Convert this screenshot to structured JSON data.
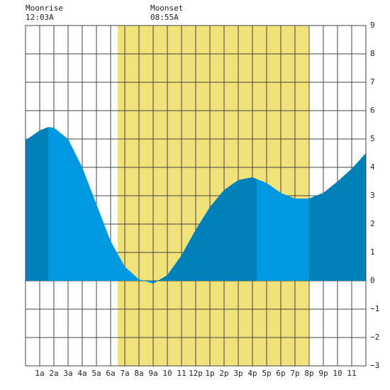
{
  "chart_data": {
    "type": "area",
    "annotations": [
      {
        "label": "Moonrise",
        "time": "12:03A"
      },
      {
        "label": "Moonset",
        "time": "08:55A"
      }
    ],
    "x": [
      0,
      1,
      1.6,
      2,
      3,
      4,
      5,
      6,
      7,
      8,
      9,
      10,
      11,
      12,
      13,
      14,
      15,
      16,
      17,
      18,
      19,
      20,
      21,
      22,
      23,
      24
    ],
    "series": [
      {
        "color": "#0099e0",
        "dark_color": "#0080b8",
        "values": [
          4.95,
          5.3,
          5.42,
          5.4,
          5.0,
          4.0,
          2.7,
          1.4,
          0.5,
          0.05,
          -0.1,
          0.2,
          0.9,
          1.8,
          2.6,
          3.2,
          3.55,
          3.65,
          3.45,
          3.1,
          2.9,
          2.9,
          3.1,
          3.5,
          3.95,
          4.5
        ]
      }
    ],
    "daylight": [
      6.5,
      19.95
    ],
    "daylight_color": "#f2e27a",
    "dark_bands": [
      [
        0,
        1.6
      ],
      [
        8.9,
        16.3
      ],
      [
        20,
        24
      ]
    ],
    "xlim": [
      0,
      24
    ],
    "xticks": [
      {
        "value": 1,
        "label": "1a"
      },
      {
        "value": 2,
        "label": "2a"
      },
      {
        "value": 3,
        "label": "3a"
      },
      {
        "value": 4,
        "label": "4a"
      },
      {
        "value": 5,
        "label": "5a"
      },
      {
        "value": 6,
        "label": "6a"
      },
      {
        "value": 7,
        "label": "7a"
      },
      {
        "value": 8,
        "label": "8a"
      },
      {
        "value": 9,
        "label": "9a"
      },
      10,
      11,
      {
        "value": 12,
        "label": "12p"
      },
      {
        "value": 13,
        "label": "1p"
      },
      {
        "value": 14,
        "label": "2p"
      },
      {
        "value": 15,
        "label": "3p"
      },
      {
        "value": 16,
        "label": "4p"
      },
      {
        "value": 17,
        "label": "5p"
      },
      {
        "value": 18,
        "label": "6p"
      },
      {
        "value": 19,
        "label": "7p"
      },
      {
        "value": 20,
        "label": "8p"
      },
      {
        "value": 21,
        "label": "9p"
      },
      {
        "value": 22,
        "label": "10"
      },
      {
        "value": 23,
        "label": "11"
      }
    ],
    "ylim": [
      -3,
      9
    ],
    "yticks": [
      {
        "value": -3,
        "label": "−3"
      },
      {
        "value": -2,
        "label": "−2"
      },
      {
        "value": -1,
        "label": "−1"
      },
      0,
      1,
      2,
      3,
      4,
      5,
      6,
      7,
      8,
      9
    ],
    "grid": true
  }
}
